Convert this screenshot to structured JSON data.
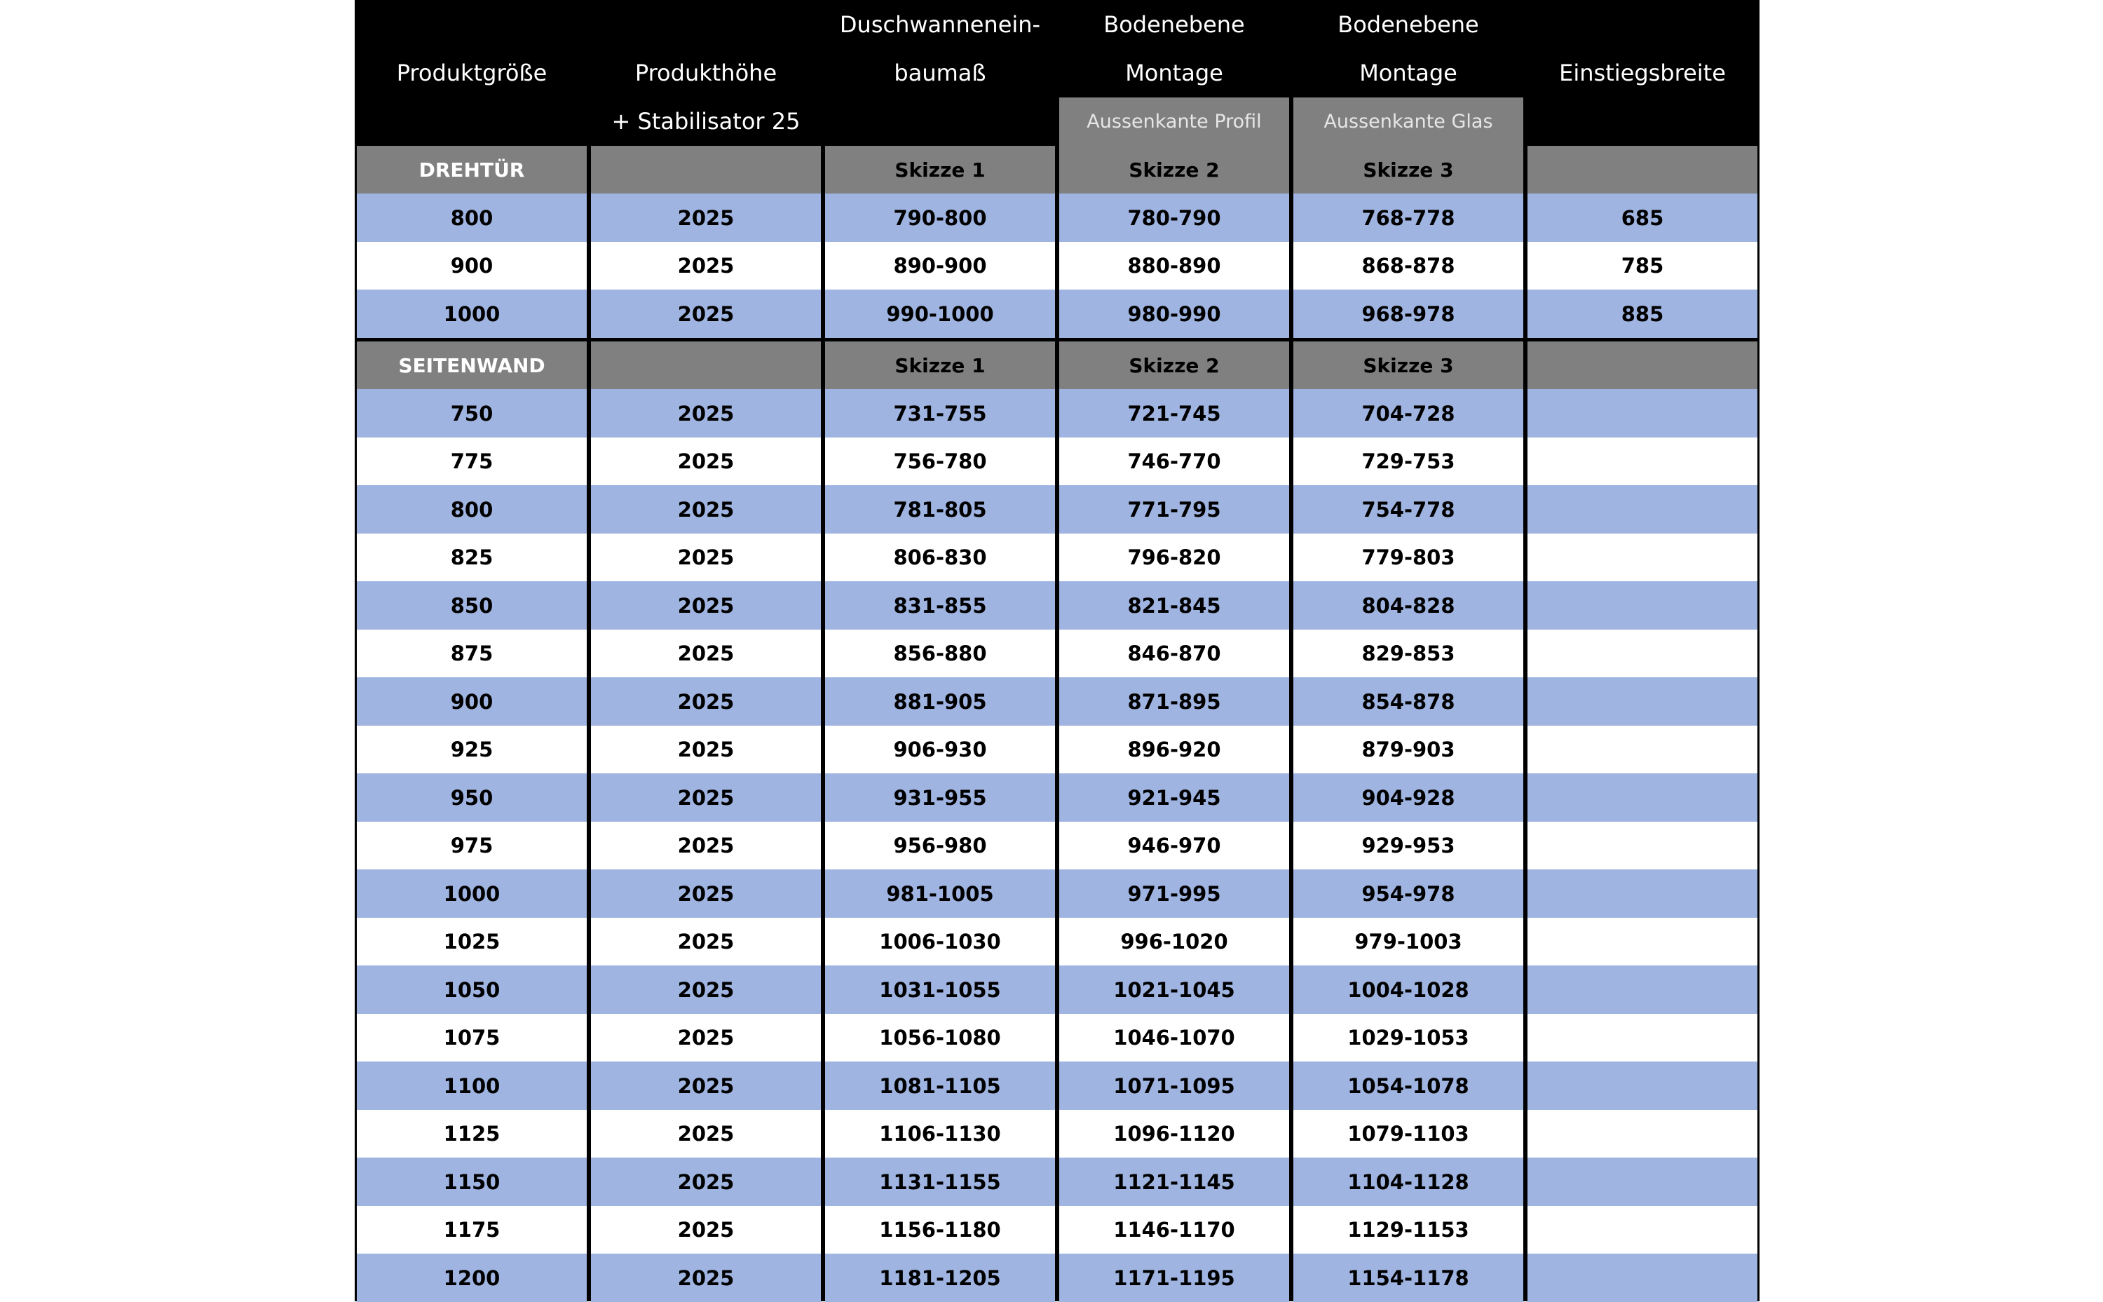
{
  "table": {
    "header": [
      [
        null,
        "Produktgröße",
        null
      ],
      [
        null,
        "Produkthöhe",
        "+ Stabilisator 25"
      ],
      [
        "Duschwannenein-",
        "baumaß",
        null
      ],
      [
        "Bodenebene",
        "Montage",
        "Aussenkante Profil"
      ],
      [
        "Bodenebene",
        "Montage",
        "Aussenkante Glas"
      ],
      [
        null,
        "Einstiegsbreite",
        null
      ]
    ],
    "sections": [
      {
        "heading": [
          "DREHTÜR",
          null,
          "Skizze 1",
          "Skizze 2",
          "Skizze 3",
          null
        ],
        "rows": [
          [
            "800",
            "2025",
            "790-800",
            "780-790",
            "768-778",
            "685"
          ],
          [
            "900",
            "2025",
            "890-900",
            "880-890",
            "868-878",
            "785"
          ],
          [
            "1000",
            "2025",
            "990-1000",
            "980-990",
            "968-978",
            "885"
          ]
        ]
      },
      {
        "heading": [
          "SEITENWAND",
          null,
          "Skizze 1",
          "Skizze 2",
          "Skizze 3",
          null
        ],
        "rows": [
          [
            "750",
            "2025",
            "731-755",
            "721-745",
            "704-728",
            null
          ],
          [
            "775",
            "2025",
            "756-780",
            "746-770",
            "729-753",
            null
          ],
          [
            "800",
            "2025",
            "781-805",
            "771-795",
            "754-778",
            null
          ],
          [
            "825",
            "2025",
            "806-830",
            "796-820",
            "779-803",
            null
          ],
          [
            "850",
            "2025",
            "831-855",
            "821-845",
            "804-828",
            null
          ],
          [
            "875",
            "2025",
            "856-880",
            "846-870",
            "829-853",
            null
          ],
          [
            "900",
            "2025",
            "881-905",
            "871-895",
            "854-878",
            null
          ],
          [
            "925",
            "2025",
            "906-930",
            "896-920",
            "879-903",
            null
          ],
          [
            "950",
            "2025",
            "931-955",
            "921-945",
            "904-928",
            null
          ],
          [
            "975",
            "2025",
            "956-980",
            "946-970",
            "929-953",
            null
          ],
          [
            "1000",
            "2025",
            "981-1005",
            "971-995",
            "954-978",
            null
          ],
          [
            "1025",
            "2025",
            "1006-1030",
            "996-1020",
            "979-1003",
            null
          ],
          [
            "1050",
            "2025",
            "1031-1055",
            "1021-1045",
            "1004-1028",
            null
          ],
          [
            "1075",
            "2025",
            "1056-1080",
            "1046-1070",
            "1029-1053",
            null
          ],
          [
            "1100",
            "2025",
            "1081-1105",
            "1071-1095",
            "1054-1078",
            null
          ],
          [
            "1125",
            "2025",
            "1106-1130",
            "1096-1120",
            "1079-1103",
            null
          ],
          [
            "1150",
            "2025",
            "1131-1155",
            "1121-1145",
            "1104-1128",
            null
          ],
          [
            "1175",
            "2025",
            "1156-1180",
            "1146-1170",
            "1129-1153",
            null
          ],
          [
            "1200",
            "2025",
            "1181-1205",
            "1171-1195",
            "1154-1178",
            null
          ]
        ]
      }
    ]
  }
}
